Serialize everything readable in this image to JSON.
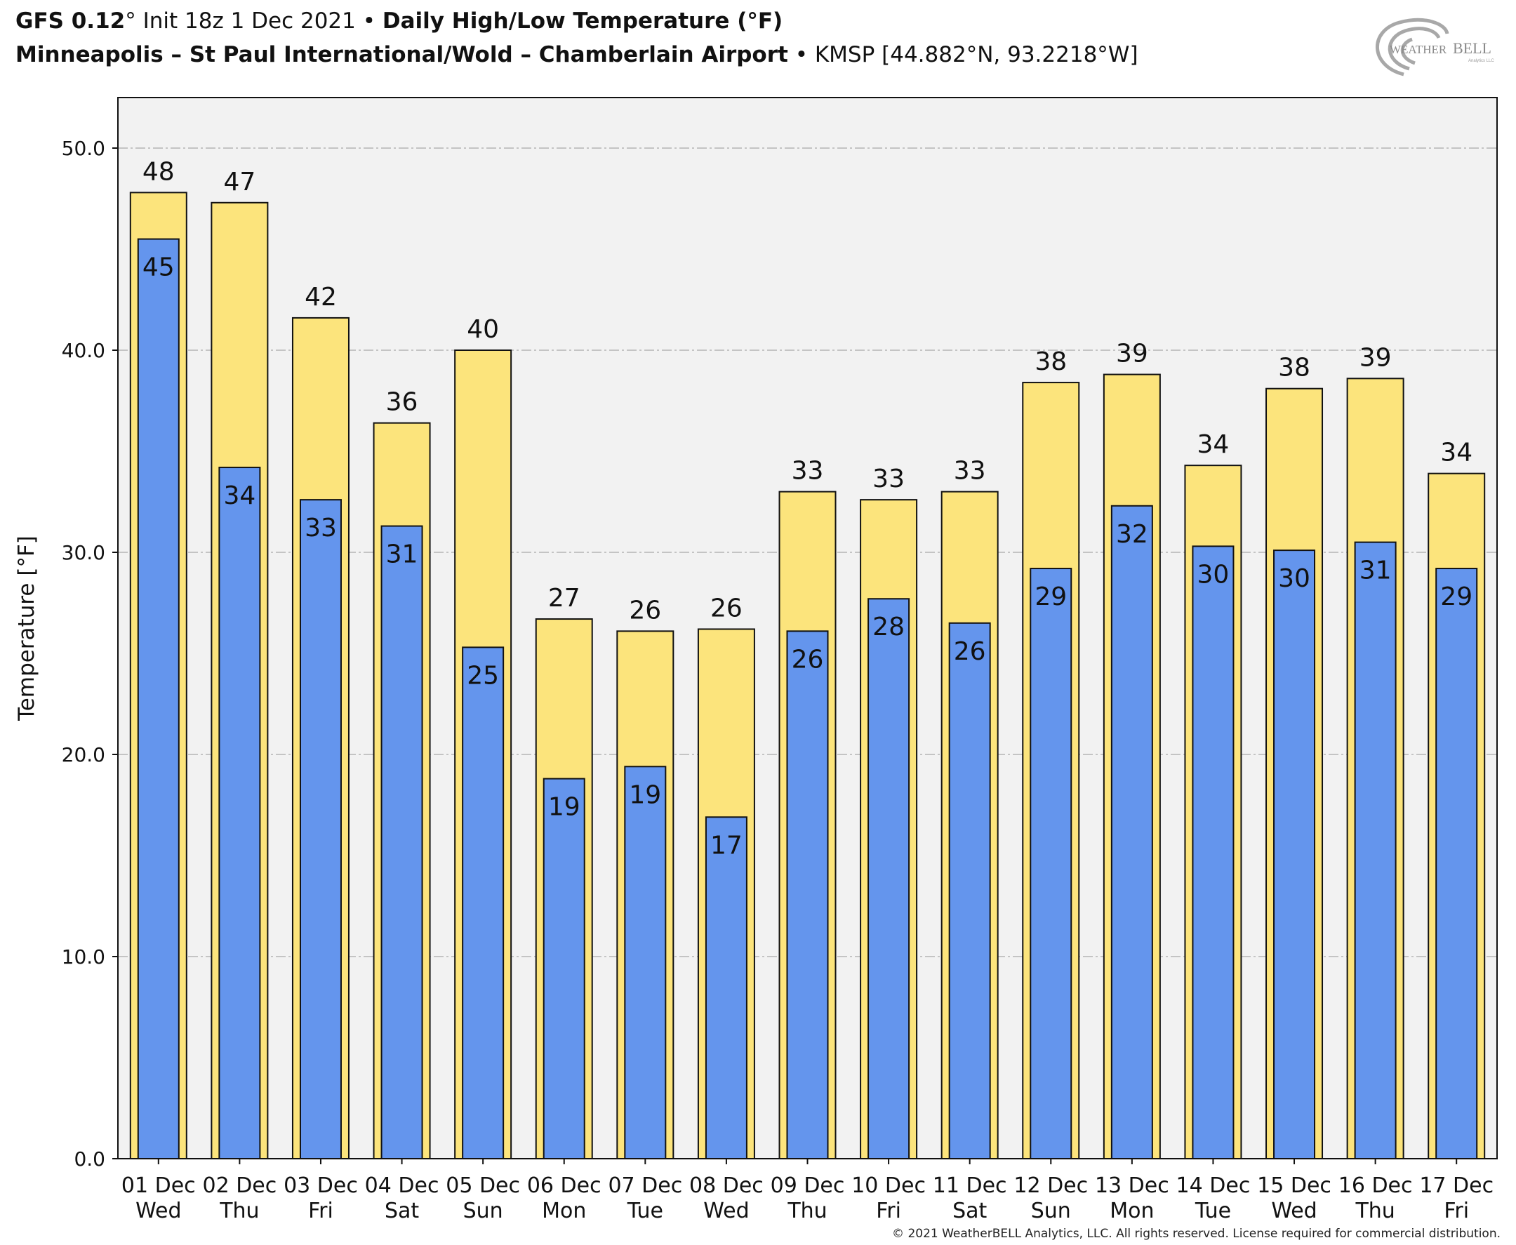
{
  "header": {
    "model": "GFS 0.12",
    "model_deg": "°",
    "init": " Init 18z 1 Dec 2021",
    "bullet": " • ",
    "product": "Daily High/Low Temperature (°F)",
    "location": "Minneapolis – St Paul International/Wold – Chamberlain Airport",
    "bullet2": " • ",
    "station": "KMSP [44.882°N, 93.2218°W]"
  },
  "logo": {
    "text_left": "WEATHER",
    "text_right": "BELL",
    "sub": "Analytics LLC"
  },
  "copyright": "© 2021 WeatherBELL Analytics, LLC. All rights reserved. License required for commercial distribution.",
  "chart_data": {
    "type": "bar",
    "ylabel": "Temperature [°F]",
    "ylim": [
      0,
      52.5
    ],
    "yticks": [
      0,
      10,
      20,
      30,
      40,
      50
    ],
    "ytick_labels": [
      "0.0",
      "10.0",
      "20.0",
      "30.0",
      "40.0",
      "50.0"
    ],
    "grid": true,
    "categories": [
      {
        "date": "01 Dec",
        "day": "Wed"
      },
      {
        "date": "02 Dec",
        "day": "Thu"
      },
      {
        "date": "03 Dec",
        "day": "Fri"
      },
      {
        "date": "04 Dec",
        "day": "Sat"
      },
      {
        "date": "05 Dec",
        "day": "Sun"
      },
      {
        "date": "06 Dec",
        "day": "Mon"
      },
      {
        "date": "07 Dec",
        "day": "Tue"
      },
      {
        "date": "08 Dec",
        "day": "Wed"
      },
      {
        "date": "09 Dec",
        "day": "Thu"
      },
      {
        "date": "10 Dec",
        "day": "Fri"
      },
      {
        "date": "11 Dec",
        "day": "Sat"
      },
      {
        "date": "12 Dec",
        "day": "Sun"
      },
      {
        "date": "13 Dec",
        "day": "Mon"
      },
      {
        "date": "14 Dec",
        "day": "Tue"
      },
      {
        "date": "15 Dec",
        "day": "Wed"
      },
      {
        "date": "16 Dec",
        "day": "Thu"
      },
      {
        "date": "17 Dec",
        "day": "Fri"
      }
    ],
    "series": [
      {
        "color": "#fce47c",
        "values": [
          47.8,
          47.3,
          41.6,
          36.4,
          40.0,
          26.7,
          26.1,
          26.2,
          33.0,
          32.6,
          33.0,
          38.4,
          38.8,
          34.3,
          38.1,
          38.6,
          33.9
        ],
        "labels": [
          48,
          47,
          42,
          36,
          40,
          27,
          26,
          26,
          33,
          33,
          33,
          38,
          39,
          34,
          38,
          39,
          34
        ]
      },
      {
        "color": "#6495ed",
        "values": [
          45.5,
          34.2,
          32.6,
          31.3,
          25.3,
          18.8,
          19.4,
          16.9,
          26.1,
          27.7,
          26.5,
          29.2,
          32.3,
          30.3,
          30.1,
          30.5,
          29.2
        ],
        "labels": [
          45,
          34,
          33,
          31,
          25,
          19,
          19,
          17,
          26,
          28,
          26,
          29,
          32,
          30,
          30,
          31,
          29
        ]
      }
    ]
  }
}
